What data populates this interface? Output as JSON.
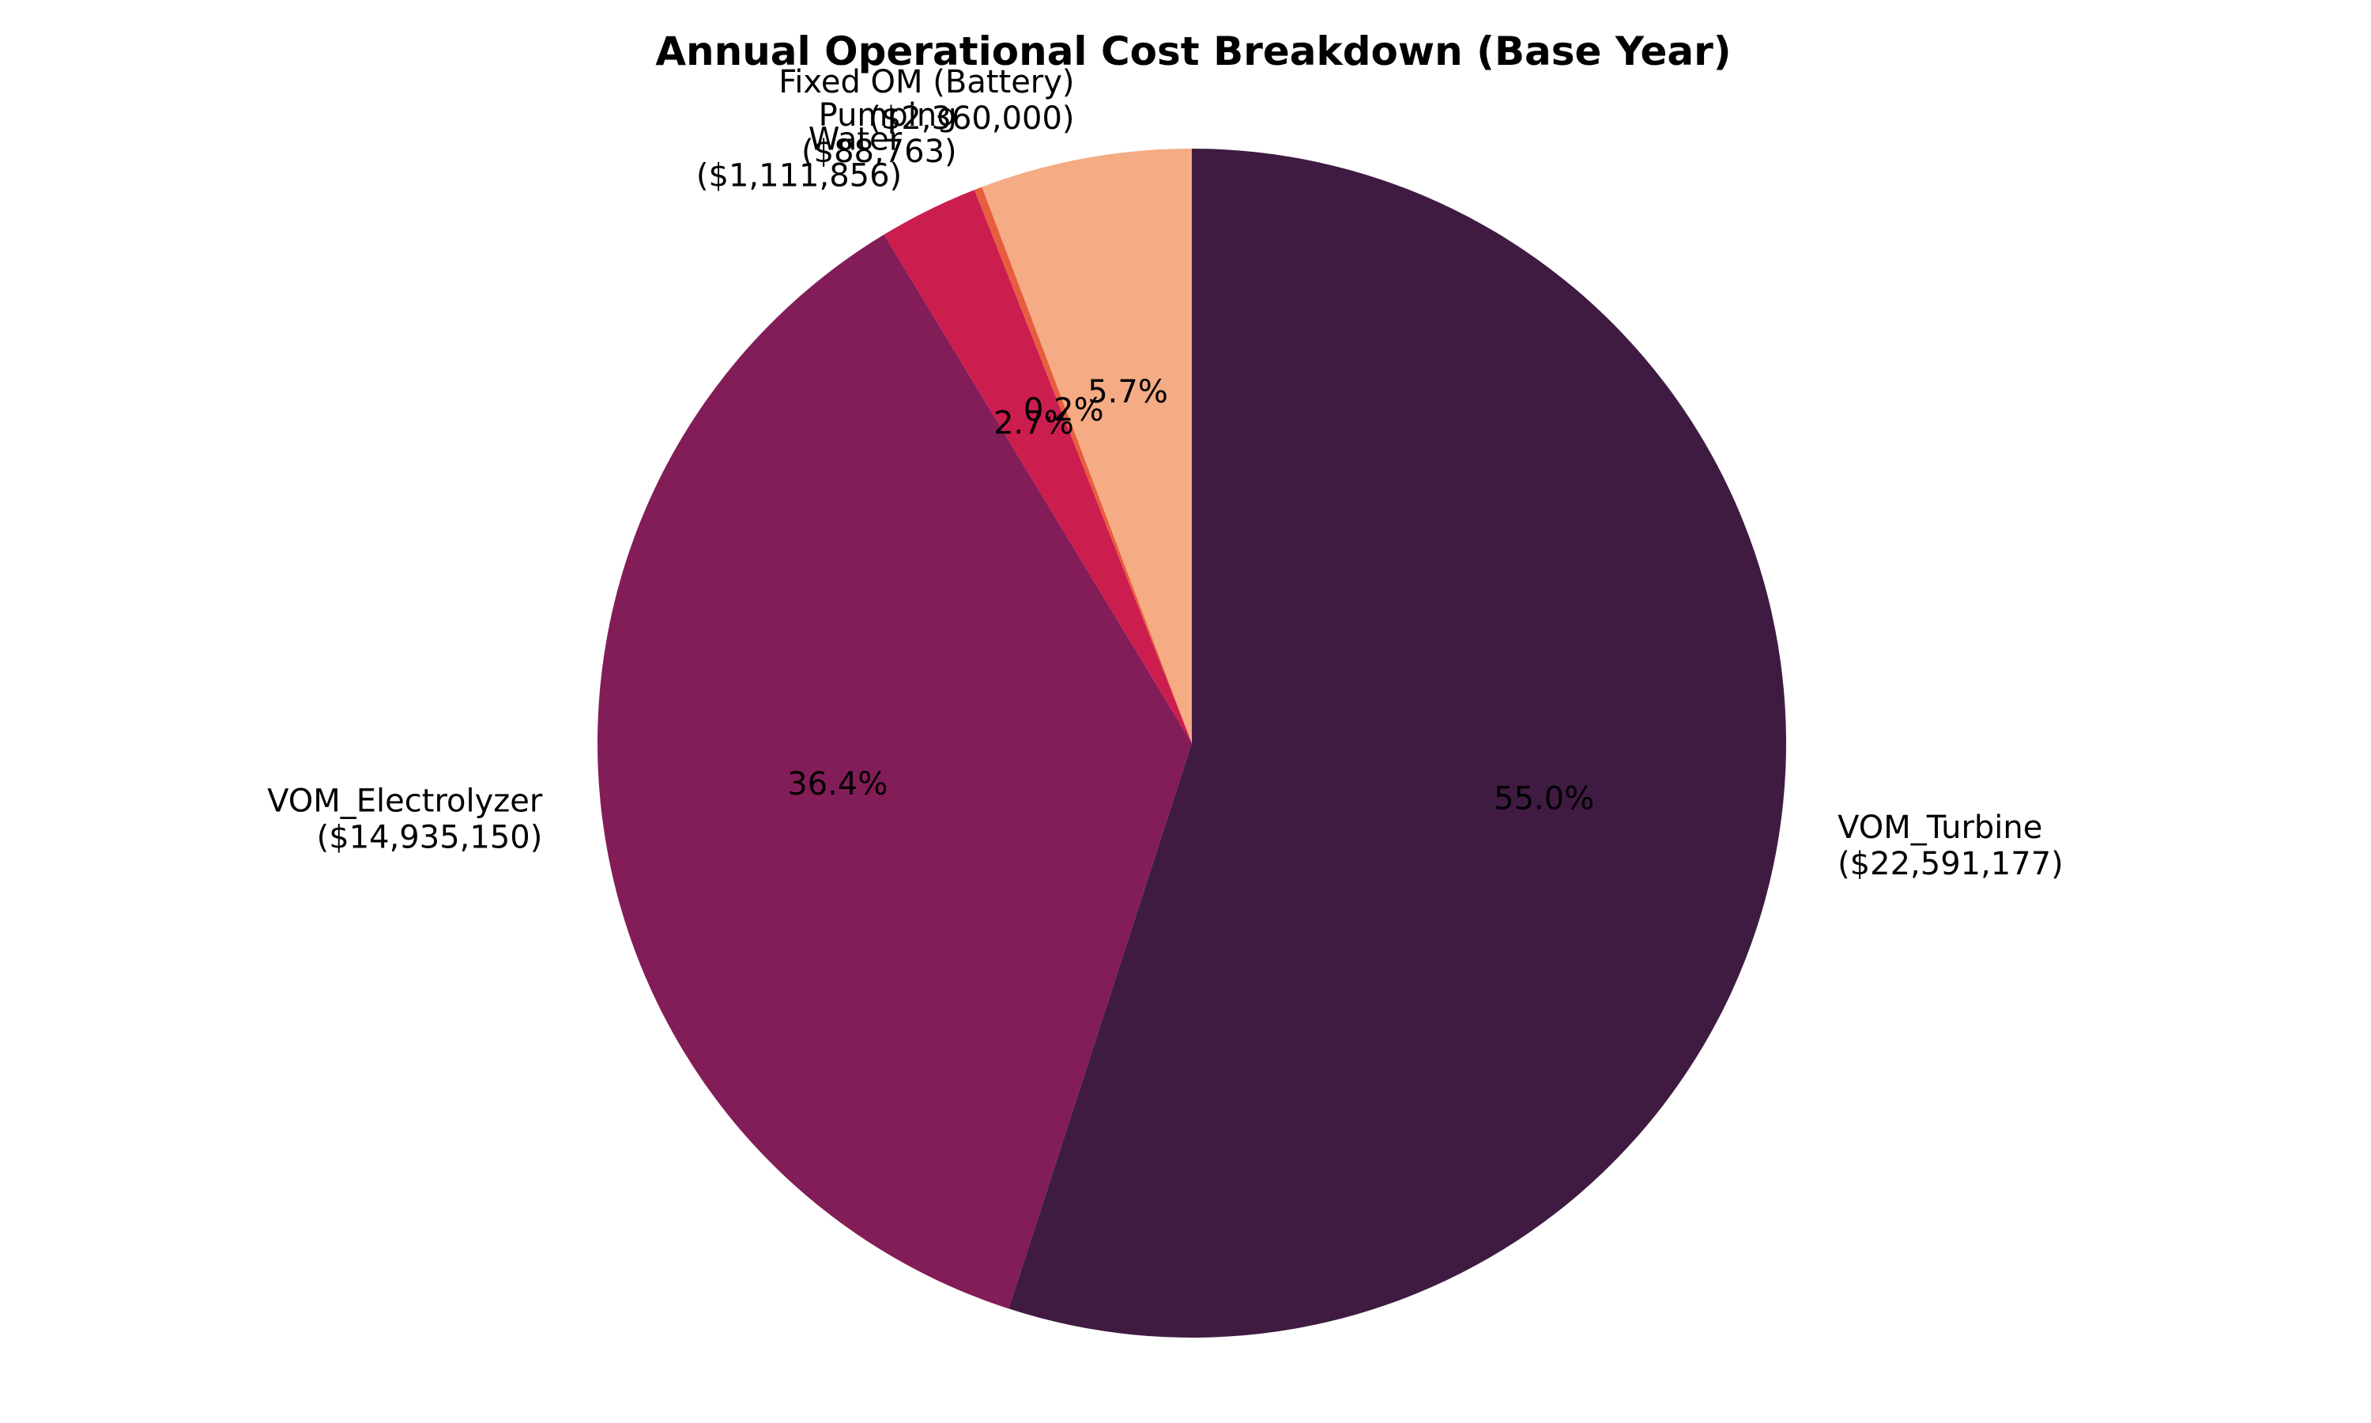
{
  "chart_data": {
    "type": "pie",
    "title": "Annual Operational Cost Breakdown (Base Year)",
    "start_angle_deg": 90,
    "direction": "clockwise",
    "slices": [
      {
        "label": "VOM_Turbine",
        "value_text": "($22,591,177)",
        "value": 22591177,
        "pct": "55.0%",
        "color": "#3f1b42"
      },
      {
        "label": "VOM_Electrolyzer",
        "value_text": "($14,935,150)",
        "value": 14935150,
        "pct": "36.4%",
        "color": "#821d58"
      },
      {
        "label": "Water",
        "value_text": "($1,111,856)",
        "value": 1111856,
        "pct": "2.7%",
        "color": "#cb1d4e"
      },
      {
        "label": "Pumping",
        "value_text": "($88,763)",
        "value": 88763,
        "pct": "0.2%",
        "color": "#e85d3e"
      },
      {
        "label": "Fixed OM (Battery)",
        "value_text": "($2,360,000)",
        "value": 2360000,
        "pct": "5.7%",
        "color": "#f5ab84"
      }
    ]
  }
}
